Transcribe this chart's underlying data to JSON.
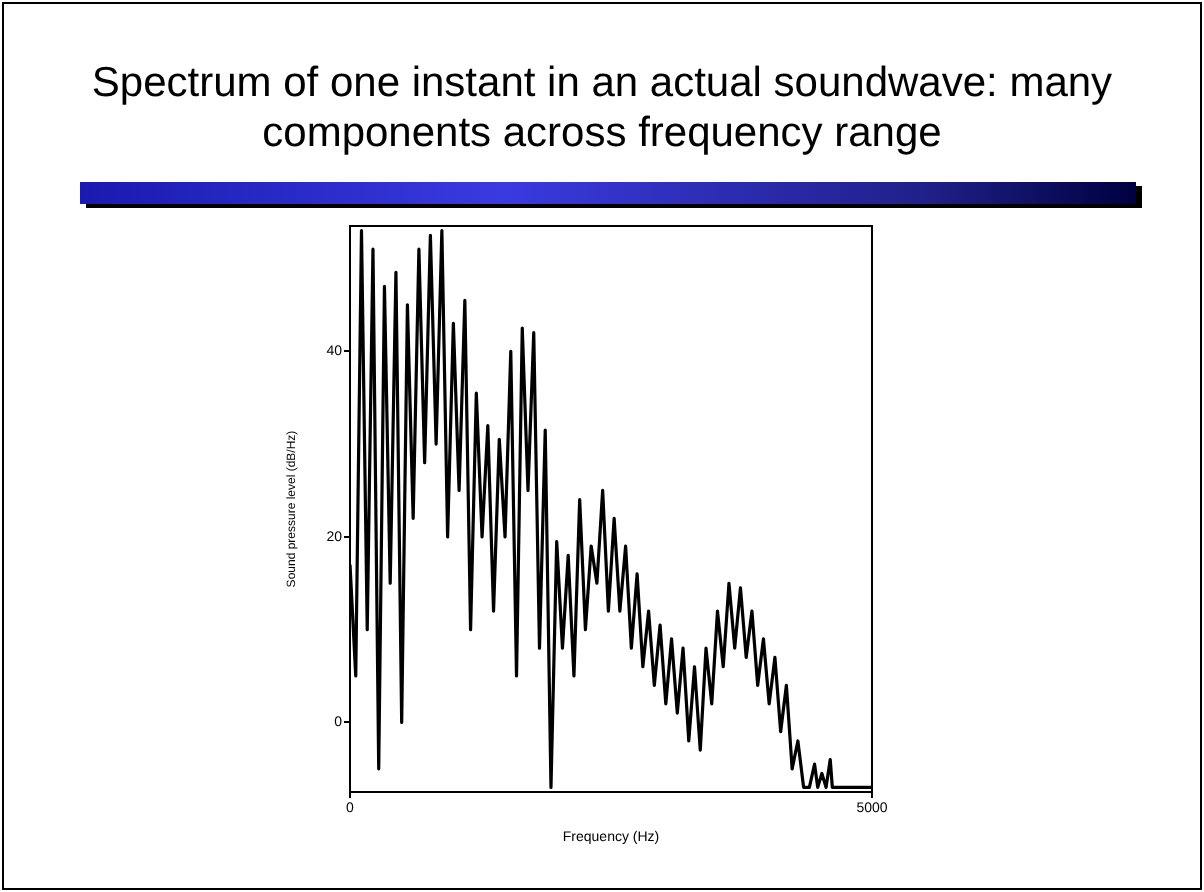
{
  "chart_data": {
    "type": "line",
    "title": "Spectrum of one instant in an actual soundwave: many components across frequency range",
    "xlabel": "Frequency (Hz)",
    "ylabel": "Sound pressure level (dB/Hz)",
    "color": "#000000",
    "x": [
      0,
      55,
      110,
      165,
      220,
      275,
      330,
      385,
      440,
      495,
      550,
      605,
      660,
      715,
      770,
      825,
      880,
      935,
      990,
      1045,
      1100,
      1155,
      1210,
      1265,
      1320,
      1375,
      1430,
      1485,
      1540,
      1595,
      1650,
      1705,
      1760,
      1815,
      1870,
      1925,
      1980,
      2035,
      2090,
      2145,
      2200,
      2255,
      2310,
      2365,
      2420,
      2475,
      2530,
      2585,
      2640,
      2695,
      2750,
      2805,
      2860,
      2915,
      2970,
      3025,
      3080,
      3135,
      3190,
      3245,
      3300,
      3355,
      3410,
      3465,
      3520,
      3575,
      3630,
      3685,
      3740,
      3795,
      3850,
      3905,
      3960,
      4015,
      4070,
      4125,
      4180,
      4235,
      4290,
      4345,
      4400,
      4450,
      4480,
      4520,
      4560,
      4600,
      4620,
      5000
    ],
    "values": [
      17,
      5,
      53,
      10,
      51,
      -5,
      47,
      15,
      48.5,
      0,
      45,
      22,
      51,
      28,
      52.5,
      30,
      53,
      20,
      43,
      25,
      45.5,
      10,
      35.5,
      20,
      32,
      12,
      30.5,
      20,
      40,
      5,
      42.5,
      25,
      42,
      8,
      31.5,
      -7,
      19.5,
      8,
      18,
      5,
      24,
      10,
      19,
      15,
      25,
      12,
      22,
      12,
      19,
      8,
      16,
      6,
      12,
      4,
      10.5,
      2,
      9,
      1,
      8,
      -2,
      6,
      -3,
      8,
      2,
      12,
      6,
      15,
      8,
      14.5,
      7,
      12,
      4,
      9,
      2,
      7,
      -1,
      4,
      -5,
      -2,
      -7,
      -7,
      -4.5,
      -7,
      -5.5,
      -7,
      -4,
      -7,
      -7
    ],
    "xlim": [
      0,
      5000
    ],
    "xticks": [
      0,
      5000
    ],
    "ylim": [
      -7.5,
      53.5
    ],
    "yticks": [
      0,
      20,
      40
    ]
  }
}
